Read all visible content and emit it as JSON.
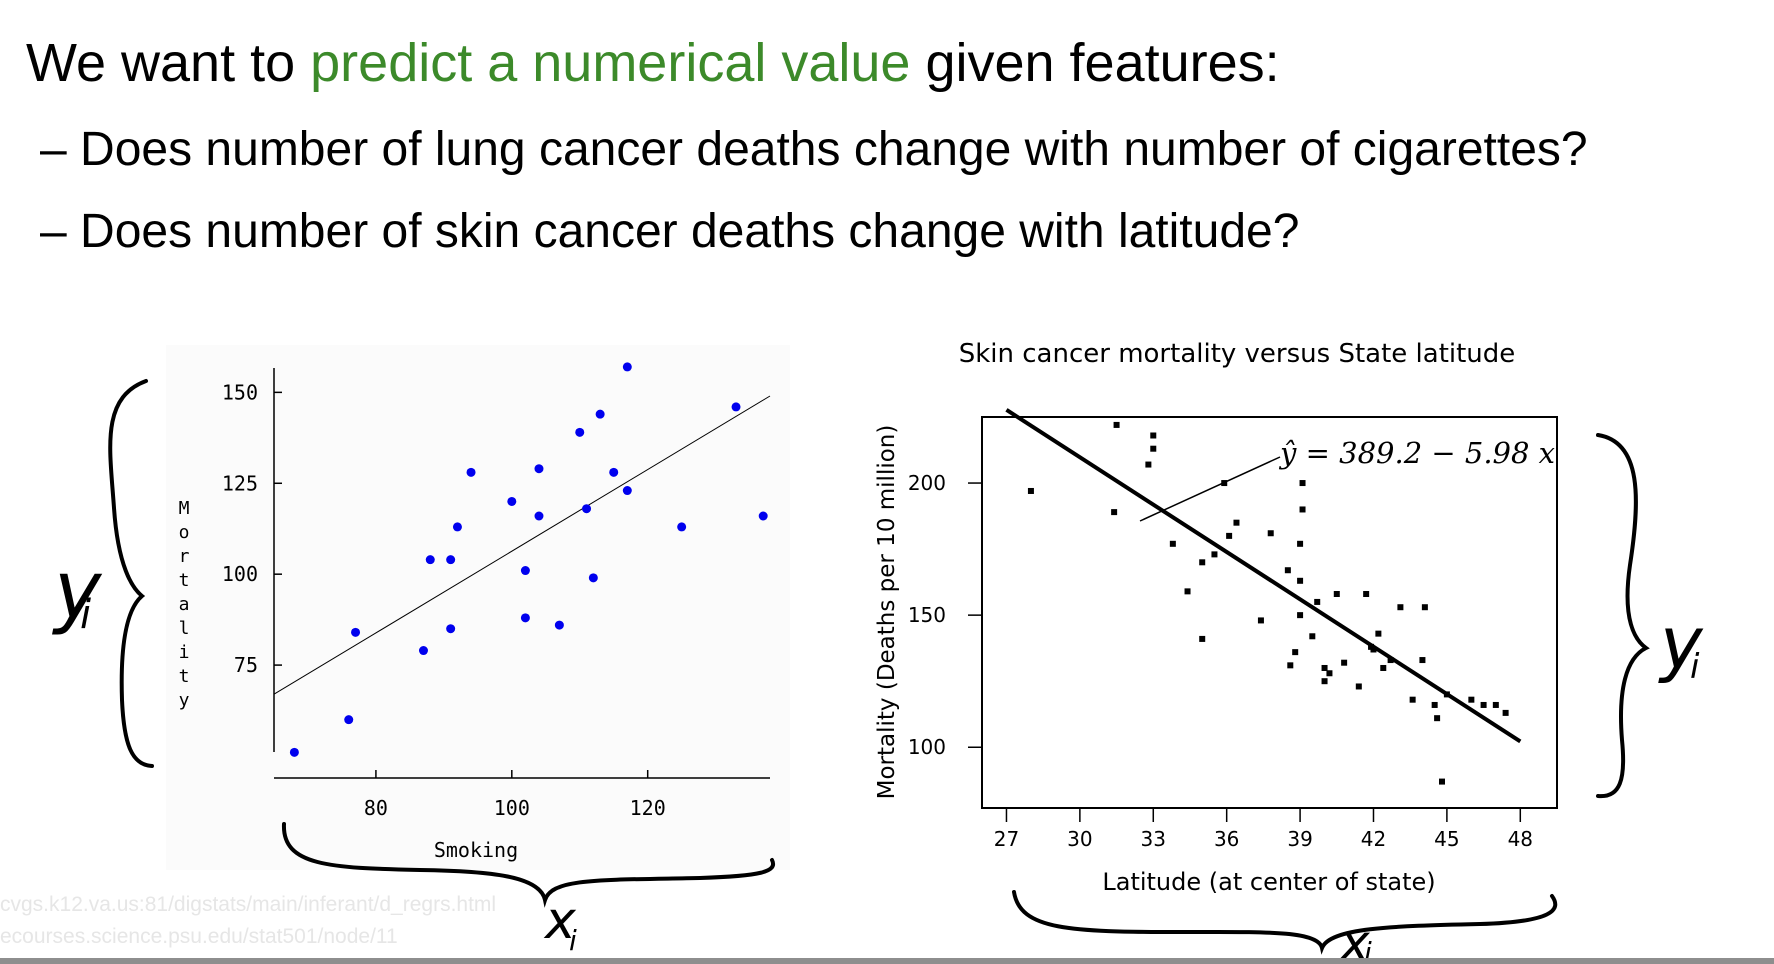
{
  "slide": {
    "heading_pre": "We want to ",
    "heading_highlight": "predict a numerical value",
    "heading_post": " given features:",
    "highlight_color": "#3c8a2a",
    "bullets": [
      "– Does number of lung cancer deaths change with number of cigarettes?",
      "– Does number of skin cancer deaths change with latitude?"
    ],
    "sources": [
      "cvgs.k12.va.us:81/digstats/main/inferant/d_regrs.html",
      "ecourses.science.psu.edu/stat501/node/11"
    ],
    "annotations": {
      "left_y": "y",
      "left_y_sub": "i",
      "left_x": "x",
      "left_x_sub": "i",
      "right_y": "y",
      "right_y_sub": "i",
      "right_x": "x",
      "right_x_sub": "i"
    }
  },
  "chart_data": [
    {
      "type": "scatter",
      "title": "",
      "xlabel": "Smoking",
      "ylabel": "Mortality",
      "xlim": [
        65,
        138
      ],
      "ylim": [
        50,
        160
      ],
      "xticks": [
        80,
        100,
        120
      ],
      "yticks": [
        75,
        100,
        125,
        150
      ],
      "point_color": "#0000ee",
      "points": [
        [
          68,
          51
        ],
        [
          76,
          60
        ],
        [
          77,
          84
        ],
        [
          87,
          79
        ],
        [
          88,
          104
        ],
        [
          91,
          104
        ],
        [
          91,
          85
        ],
        [
          92,
          113
        ],
        [
          94,
          128
        ],
        [
          100,
          120
        ],
        [
          102,
          101
        ],
        [
          102,
          88
        ],
        [
          104,
          129
        ],
        [
          104,
          116
        ],
        [
          107,
          86
        ],
        [
          110,
          139
        ],
        [
          111,
          118
        ],
        [
          112,
          99
        ],
        [
          113,
          144
        ],
        [
          115,
          128
        ],
        [
          117,
          157
        ],
        [
          117,
          123
        ],
        [
          125,
          113
        ],
        [
          133,
          146
        ],
        [
          137,
          116
        ]
      ],
      "fit_line": {
        "x": [
          65,
          138
        ],
        "y": [
          67,
          149
        ]
      }
    },
    {
      "type": "scatter",
      "title": "Skin cancer mortality versus State latitude",
      "xlabel": "Latitude (at center of state)",
      "ylabel": "Mortality (Deaths per 10 million)",
      "xlim": [
        26,
        49.5
      ],
      "ylim": [
        77,
        225
      ],
      "xticks": [
        27,
        30,
        33,
        36,
        39,
        42,
        45,
        48
      ],
      "yticks": [
        100,
        150,
        200
      ],
      "equation": "ŷ = 389.2 − 5.98 x",
      "point_color": "#000000",
      "points": [
        [
          28,
          197
        ],
        [
          31.5,
          222
        ],
        [
          31.4,
          189
        ],
        [
          33,
          218
        ],
        [
          33,
          213
        ],
        [
          32.8,
          207
        ],
        [
          33.8,
          177
        ],
        [
          34.4,
          159
        ],
        [
          35.0,
          141
        ],
        [
          35.0,
          170
        ],
        [
          35.5,
          173
        ],
        [
          35.9,
          200
        ],
        [
          36.1,
          180
        ],
        [
          36.4,
          185
        ],
        [
          37.4,
          148
        ],
        [
          37.8,
          181
        ],
        [
          38.5,
          167
        ],
        [
          38.6,
          131
        ],
        [
          38.8,
          136
        ],
        [
          39.0,
          163
        ],
        [
          39.0,
          177
        ],
        [
          39.1,
          190
        ],
        [
          39.1,
          200
        ],
        [
          39.0,
          150
        ],
        [
          39.5,
          142
        ],
        [
          39.7,
          155
        ],
        [
          40.0,
          125
        ],
        [
          40.0,
          130
        ],
        [
          40.2,
          128
        ],
        [
          40.5,
          158
        ],
        [
          40.8,
          132
        ],
        [
          41.4,
          123
        ],
        [
          41.7,
          158
        ],
        [
          41.9,
          138
        ],
        [
          42.0,
          137
        ],
        [
          42.2,
          143
        ],
        [
          42.4,
          130
        ],
        [
          42.7,
          133
        ],
        [
          43.1,
          153
        ],
        [
          43.6,
          118
        ],
        [
          44.0,
          133
        ],
        [
          44.1,
          153
        ],
        [
          44.5,
          116
        ],
        [
          44.6,
          111
        ],
        [
          44.8,
          87
        ],
        [
          45.0,
          120
        ],
        [
          46.0,
          118
        ],
        [
          46.5,
          116
        ],
        [
          47.0,
          116
        ],
        [
          47.4,
          113
        ]
      ],
      "fit_line": {
        "x": [
          27,
          48
        ],
        "y": [
          227.7,
          102.2
        ]
      }
    }
  ]
}
